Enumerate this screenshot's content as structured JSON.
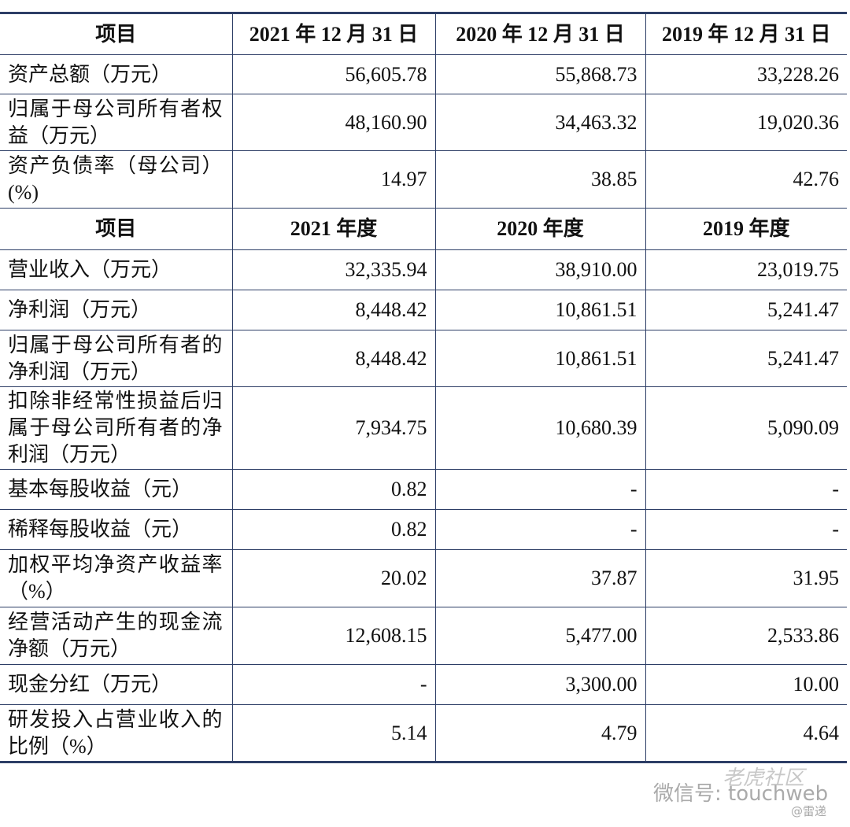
{
  "table": {
    "sections": [
      {
        "header": [
          "项目",
          "2021 年 12 月 31 日",
          "2020 年 12 月 31 日",
          "2019 年 12 月 31 日"
        ],
        "rows": [
          [
            "资产总额（万元）",
            "56,605.78",
            "55,868.73",
            "33,228.26"
          ],
          [
            "归属于母公司所有者权益（万元）",
            "48,160.90",
            "34,463.32",
            "19,020.36"
          ],
          [
            "资产负债率（母公司）(%)",
            "14.97",
            "38.85",
            "42.76"
          ]
        ]
      },
      {
        "header": [
          "项目",
          "2021 年度",
          "2020 年度",
          "2019 年度"
        ],
        "rows": [
          [
            "营业收入（万元）",
            "32,335.94",
            "38,910.00",
            "23,019.75"
          ],
          [
            "净利润（万元）",
            "8,448.42",
            "10,861.51",
            "5,241.47"
          ],
          [
            "归属于母公司所有者的净利润（万元）",
            "8,448.42",
            "10,861.51",
            "5,241.47"
          ],
          [
            "扣除非经常性损益后归属于母公司所有者的净利润（万元）",
            "7,934.75",
            "10,680.39",
            "5,090.09"
          ],
          [
            "基本每股收益（元）",
            "0.82",
            "-",
            "-"
          ],
          [
            "稀释每股收益（元）",
            "0.82",
            "-",
            "-"
          ],
          [
            "加权平均净资产收益率（%）",
            "20.02",
            "37.87",
            "31.95"
          ],
          [
            "经营活动产生的现金流净额（万元）",
            "12,608.15",
            "5,477.00",
            "2,533.86"
          ],
          [
            "现金分红（万元）",
            "-",
            "3,300.00",
            "10.00"
          ],
          [
            "研发投入占营业收入的比例（%）",
            "5.14",
            "4.79",
            "4.64"
          ]
        ]
      }
    ]
  },
  "watermark": {
    "brand": "老虎社区",
    "account": "微信号: touchweb",
    "source": "@雷递"
  }
}
